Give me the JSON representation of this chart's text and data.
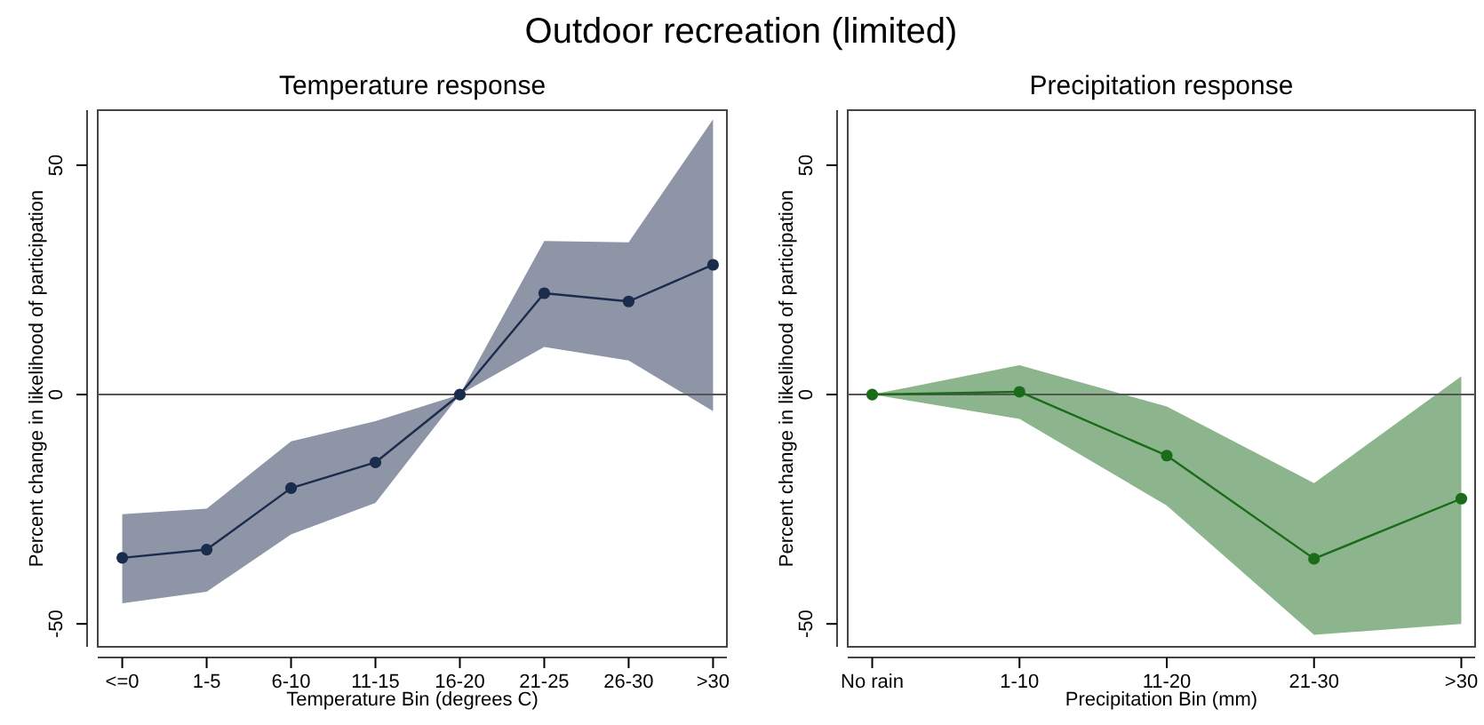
{
  "chart_data": [
    {
      "type": "line",
      "title": "Temperature response",
      "xlabel": "Temperature Bin (degrees C)",
      "ylabel": "Percent change in likelihood of participation",
      "annotations": [
        "Outdoor recreation (limited)"
      ],
      "categories": [
        "<=0",
        "1-5",
        "6-10",
        "11-15",
        "16-20",
        "21-25",
        "26-30",
        ">30"
      ],
      "series": [
        {
          "color": "#1a2b4c",
          "values": [
            -35.6,
            -33.8,
            -20.4,
            -14.8,
            0,
            22.1,
            20.3,
            28.3
          ],
          "lower": [
            -45.5,
            -43.0,
            -30.5,
            -23.6,
            0,
            10.4,
            7.4,
            -3.6
          ],
          "upper": [
            -26.1,
            -24.9,
            -10.2,
            -5.8,
            0,
            33.5,
            33.2,
            60.0
          ]
        }
      ],
      "ylim": [
        -55,
        62
      ],
      "yticks": [
        -50,
        0,
        50
      ],
      "grid": false,
      "marker": "circle",
      "line_style": "solid",
      "ref_lines": [
        {
          "axis": "y",
          "value": 0,
          "color": "#555555"
        }
      ]
    },
    {
      "type": "line",
      "title": "Precipitation response",
      "xlabel": "Precipitation Bin (mm)",
      "ylabel": "Percent change in likelihood of participation",
      "categories": [
        "No rain",
        "1-10",
        "11-20",
        "21-30",
        ">30"
      ],
      "series": [
        {
          "color": "#1a6b1a",
          "values": [
            0,
            0.6,
            -13.3,
            -35.8,
            -22.7
          ],
          "lower": [
            0,
            -5.3,
            -24.2,
            -52.4,
            -50.0
          ],
          "upper": [
            0,
            6.4,
            -2.6,
            -19.3,
            4.0
          ]
        }
      ],
      "ylim": [
        -55,
        62
      ],
      "yticks": [
        -50,
        0,
        50
      ],
      "grid": false,
      "marker": "circle",
      "line_style": "solid",
      "ref_lines": [
        {
          "axis": "y",
          "value": 0,
          "color": "#555555"
        }
      ]
    }
  ]
}
